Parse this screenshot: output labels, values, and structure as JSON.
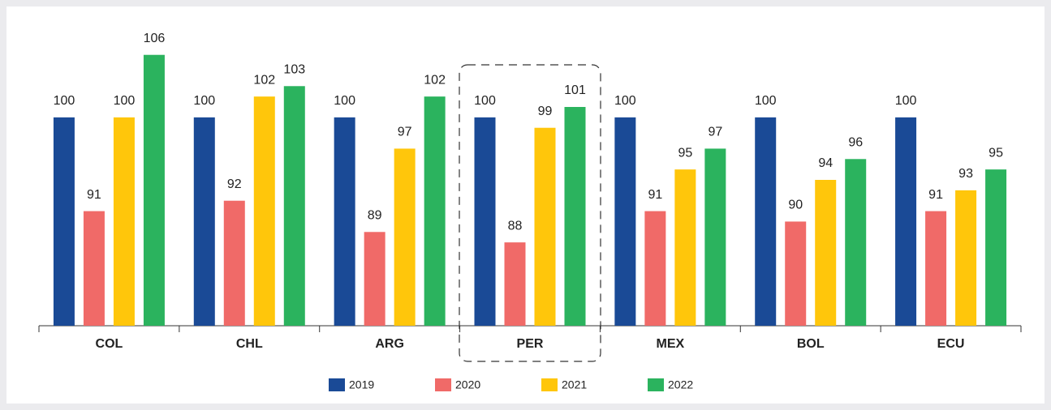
{
  "chart_data": {
    "type": "bar",
    "categories": [
      "COL",
      "CHL",
      "ARG",
      "PER",
      "MEX",
      "BOL",
      "ECU"
    ],
    "series": [
      {
        "name": "2019",
        "color": "#1a4a96",
        "values": [
          100,
          100,
          100,
          100,
          100,
          100,
          100
        ]
      },
      {
        "name": "2020",
        "color": "#f06a68",
        "values": [
          91,
          92,
          89,
          88,
          91,
          90,
          91
        ]
      },
      {
        "name": "2021",
        "color": "#ffc60b",
        "values": [
          100,
          102,
          97,
          99,
          95,
          94,
          93
        ]
      },
      {
        "name": "2022",
        "color": "#2bb35e",
        "values": [
          106,
          103,
          102,
          101,
          97,
          96,
          95
        ]
      }
    ],
    "ylim": [
      80,
      108
    ]
  }
}
